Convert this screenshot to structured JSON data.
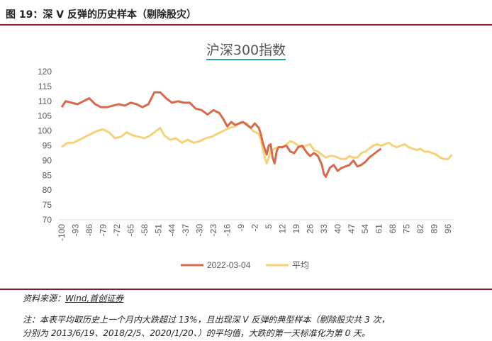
{
  "figure_title": "图 19：深 V 反弹的历史样本（剔除股灾）",
  "source_label": "资料来源：",
  "source_value": "Wind,首创证券",
  "note_lines": [
    "注：本表平均取历史上一个月内大跌超过 13%，且出现深 V 反弹的典型样本（剔除股灾共 3 次，",
    "分别为 2013/6/19、2018/2/5、2020/1/20、）的平均值，大跌的第一天标准化为第 0 天。"
  ],
  "colors": {
    "series1": "#d9694a",
    "series2": "#f5d27a",
    "rule": "#8b1a1a"
  },
  "chart_data": {
    "type": "line",
    "title": "沪深300指数",
    "ylim": [
      70,
      120
    ],
    "yticks": [
      70,
      75,
      80,
      85,
      90,
      95,
      100,
      105,
      110,
      115,
      120
    ],
    "xlim": [
      -100,
      99
    ],
    "xticks": [
      -100,
      -93,
      -86,
      -79,
      -72,
      -65,
      -58,
      -51,
      -44,
      -37,
      -30,
      -23,
      -16,
      -9,
      -2,
      5,
      12,
      19,
      26,
      33,
      40,
      47,
      54,
      61,
      68,
      75,
      82,
      89,
      96
    ],
    "legend": "bottom",
    "series": [
      {
        "name": "2022-03-04",
        "x": [
          -100,
          -98,
          -95,
          -92,
          -89,
          -86,
          -83,
          -80,
          -77,
          -74,
          -71,
          -68,
          -65,
          -62,
          -59,
          -56,
          -53,
          -50,
          -47,
          -44,
          -41,
          -38,
          -35,
          -32,
          -29,
          -26,
          -23,
          -20,
          -18,
          -16,
          -14,
          -12,
          -10,
          -8,
          -6,
          -4,
          -2,
          0,
          1,
          2,
          3,
          4,
          5,
          6,
          7,
          8,
          9,
          10,
          12,
          14,
          16,
          18,
          20,
          22,
          24,
          26,
          28,
          30,
          32,
          33,
          34,
          36,
          38,
          40,
          42,
          44,
          46,
          48,
          50,
          52,
          54,
          56,
          58,
          60,
          62
        ],
        "values": [
          108,
          110,
          109.5,
          109,
          110,
          111,
          109,
          108,
          108,
          108.5,
          109,
          108.5,
          109.5,
          109,
          108,
          109,
          113,
          113,
          111,
          109.5,
          110,
          109.5,
          109.5,
          107.5,
          107,
          105.5,
          107,
          106,
          104,
          101.5,
          103,
          102,
          102.5,
          103,
          102,
          101,
          102.5,
          101,
          99,
          96,
          94,
          92,
          95,
          95.5,
          91,
          89,
          93,
          94.5,
          94.5,
          95,
          93,
          92.5,
          94.5,
          95,
          93,
          91.5,
          92.5,
          91.5,
          88.5,
          85.5,
          84.5,
          87.5,
          88.5,
          86.5,
          87.5,
          88,
          88.5,
          90,
          88,
          88.5,
          89.5,
          91,
          92,
          93,
          94
        ]
      },
      {
        "name": "平均",
        "x": [
          -100,
          -97,
          -94,
          -91,
          -88,
          -85,
          -82,
          -79,
          -76,
          -73,
          -70,
          -67,
          -64,
          -61,
          -58,
          -55,
          -52,
          -50,
          -48,
          -45,
          -42,
          -39,
          -36,
          -33,
          -30,
          -27,
          -24,
          -21,
          -18,
          -15,
          -12,
          -9,
          -6,
          -3,
          0,
          1,
          2,
          3,
          4,
          5,
          6,
          8,
          10,
          12,
          14,
          16,
          18,
          20,
          22,
          24,
          26,
          28,
          30,
          32,
          34,
          36,
          38,
          40,
          42,
          44,
          46,
          48,
          50,
          52,
          54,
          56,
          58,
          60,
          62,
          64,
          66,
          68,
          70,
          72,
          74,
          76,
          78,
          80,
          82,
          84,
          86,
          88,
          90,
          92,
          94,
          96,
          98
        ],
        "values": [
          94.5,
          96,
          96,
          97,
          98,
          99,
          100,
          100.5,
          99.5,
          97.5,
          98,
          99.5,
          98.5,
          98,
          97.5,
          98.5,
          100,
          101,
          98.5,
          97,
          97.5,
          96,
          97,
          96,
          96.5,
          97.5,
          98,
          99,
          100,
          101,
          101.5,
          103,
          102.5,
          100,
          99,
          97,
          94,
          91,
          89,
          91,
          93,
          94,
          94.5,
          94.5,
          95.5,
          96.5,
          96,
          95,
          94.5,
          95,
          95.5,
          93.5,
          93,
          92,
          91,
          91.5,
          91.5,
          91,
          90.5,
          90.5,
          91.5,
          91,
          91,
          92.5,
          93,
          94,
          95,
          95.5,
          95,
          95.5,
          96,
          95,
          94.5,
          95,
          95.5,
          94.5,
          94,
          93.5,
          94,
          93,
          93,
          92.5,
          92,
          91,
          90.5,
          90.5,
          92
        ]
      }
    ]
  }
}
